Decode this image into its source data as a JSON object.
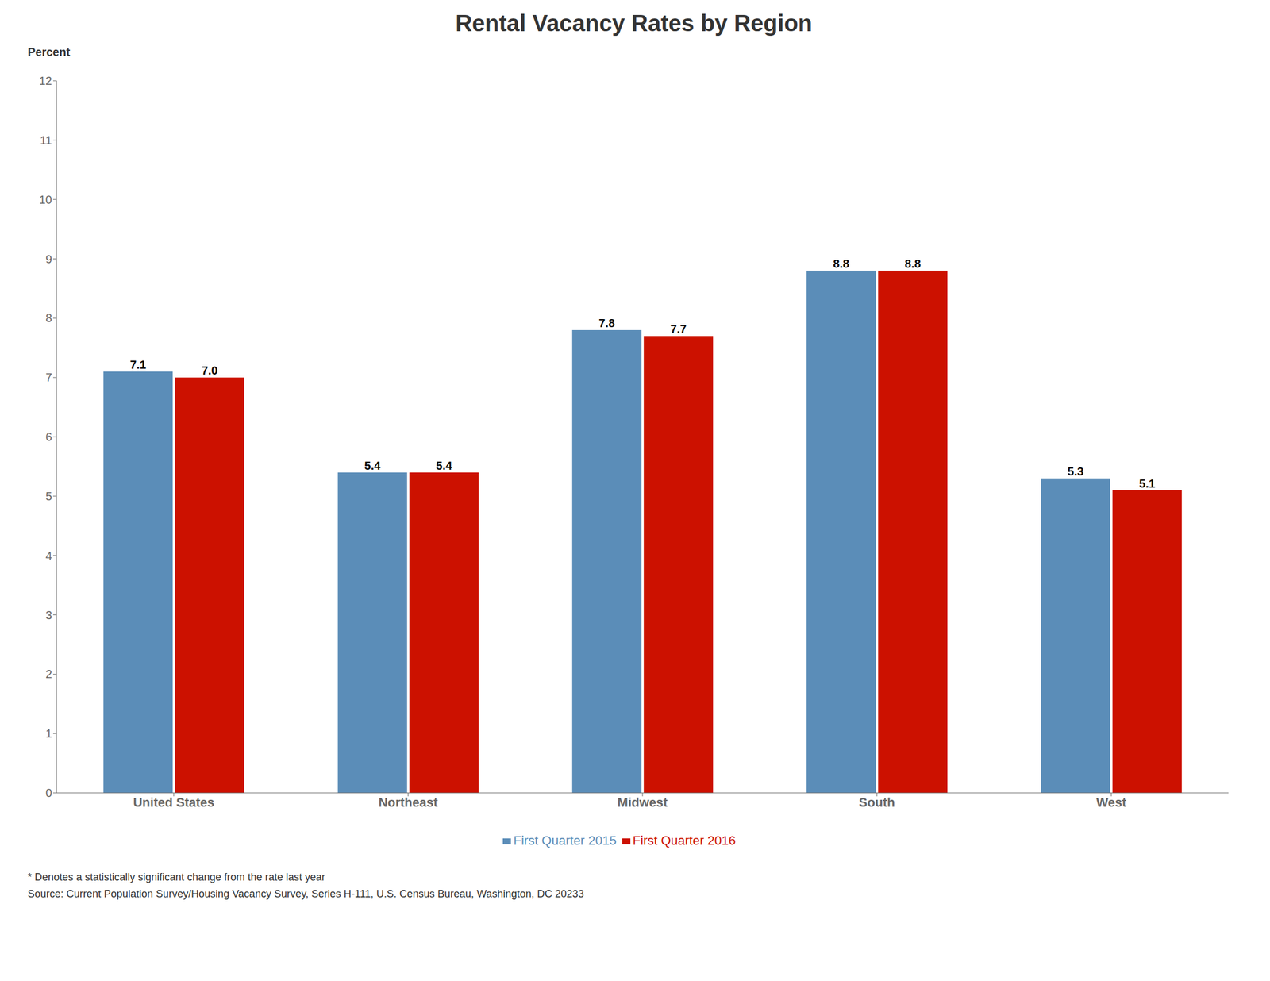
{
  "chart_data": {
    "type": "bar",
    "title": "Rental Vacancy Rates by Region",
    "ylabel": "Percent",
    "categories": [
      "United States",
      "Northeast",
      "Midwest",
      "South",
      "West"
    ],
    "series": [
      {
        "name": "First Quarter 2015",
        "color": "#5B8DB8",
        "values": [
          7.1,
          5.4,
          7.8,
          8.8,
          5.3
        ]
      },
      {
        "name": "First Quarter 2016",
        "color": "#CC1100",
        "values": [
          7.0,
          5.4,
          7.7,
          8.8,
          5.1
        ],
        "value_labels": [
          "7.0",
          "5.4",
          "7.7",
          "8.8",
          "5.1"
        ]
      }
    ],
    "ylim": [
      0,
      12
    ],
    "yticks": [
      0,
      1,
      2,
      3,
      4,
      5,
      6,
      7,
      8,
      9,
      10,
      11,
      12
    ],
    "grid": false,
    "legend": "bottom",
    "data_labels": true,
    "annotations": [
      "* Denotes a statistically significant change from the rate last year",
      "Source: Current Population Survey/Housing Vacancy Survey, Series H-111, U.S. Census Bureau, Washington, DC 20233"
    ]
  }
}
